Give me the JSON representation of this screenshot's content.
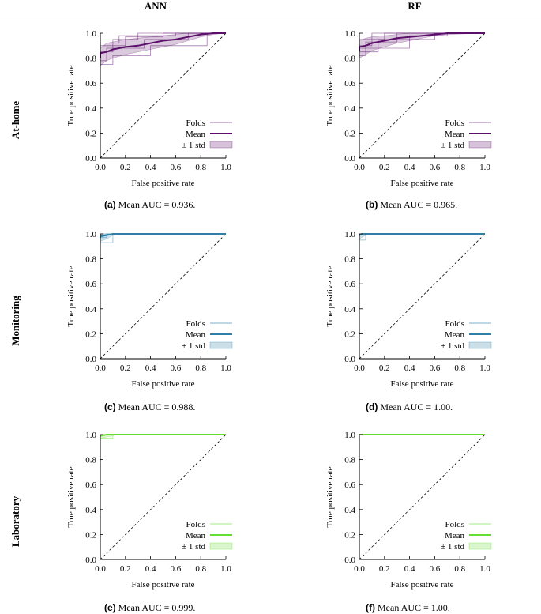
{
  "headers": {
    "ann": "ANN",
    "rf": "RF"
  },
  "rows": {
    "athome": "At-home",
    "monitoring": "Monitoring",
    "laboratory": "Laboratory"
  },
  "axis": {
    "xlabel": "False positive rate",
    "ylabel": "True positive rate",
    "ticks": [
      "0.0",
      "0.2",
      "0.4",
      "0.6",
      "0.8",
      "1.0"
    ]
  },
  "legend": {
    "folds": "Folds",
    "mean": "Mean",
    "std": "± 1 std"
  },
  "colors": {
    "purple": "#5b0f6b",
    "teal": "#2e7ea6",
    "green": "#66dd33"
  },
  "chart_data": [
    {
      "id": "a",
      "type": "line",
      "model": "ANN",
      "group": "At-home",
      "color": "purple",
      "caption_label": "(a)",
      "caption_text": "Mean AUC = 0.936.",
      "xlim": [
        0,
        1
      ],
      "ylim": [
        0,
        1
      ],
      "mean": [
        [
          0,
          0.8
        ],
        [
          0,
          0.84
        ],
        [
          0.05,
          0.85
        ],
        [
          0.1,
          0.87
        ],
        [
          0.15,
          0.88
        ],
        [
          0.2,
          0.89
        ],
        [
          0.3,
          0.9
        ],
        [
          0.4,
          0.92
        ],
        [
          0.5,
          0.94
        ],
        [
          0.6,
          0.95
        ],
        [
          0.7,
          0.97
        ],
        [
          0.8,
          0.99
        ],
        [
          0.9,
          1.0
        ],
        [
          1,
          1.0
        ]
      ],
      "std_upper": [
        [
          0,
          0.88
        ],
        [
          0.05,
          0.92
        ],
        [
          0.1,
          0.93
        ],
        [
          0.2,
          0.95
        ],
        [
          0.3,
          0.96
        ],
        [
          0.4,
          0.97
        ],
        [
          0.5,
          0.98
        ],
        [
          0.6,
          0.99
        ],
        [
          0.7,
          1.0
        ],
        [
          1,
          1.0
        ]
      ],
      "std_lower": [
        [
          0,
          0.74
        ],
        [
          0.05,
          0.78
        ],
        [
          0.1,
          0.8
        ],
        [
          0.2,
          0.83
        ],
        [
          0.3,
          0.85
        ],
        [
          0.4,
          0.87
        ],
        [
          0.5,
          0.89
        ],
        [
          0.6,
          0.91
        ],
        [
          0.7,
          0.94
        ],
        [
          0.8,
          0.97
        ],
        [
          0.9,
          0.99
        ],
        [
          1,
          1.0
        ]
      ],
      "folds": [
        [
          [
            0,
            0.85
          ],
          [
            0.1,
            0.85
          ],
          [
            0.1,
            0.95
          ],
          [
            0.3,
            0.95
          ],
          [
            0.3,
            1.0
          ],
          [
            1,
            1.0
          ]
        ],
        [
          [
            0,
            0.78
          ],
          [
            0.05,
            0.78
          ],
          [
            0.05,
            0.88
          ],
          [
            0.35,
            0.88
          ],
          [
            0.35,
            0.95
          ],
          [
            0.7,
            0.95
          ],
          [
            0.7,
            1.0
          ],
          [
            1,
            1.0
          ]
        ],
        [
          [
            0,
            0.9
          ],
          [
            0.2,
            0.9
          ],
          [
            0.2,
            0.97
          ],
          [
            0.5,
            0.97
          ],
          [
            0.5,
            1.0
          ],
          [
            1,
            1.0
          ]
        ],
        [
          [
            0,
            0.75
          ],
          [
            0.1,
            0.75
          ],
          [
            0.1,
            0.82
          ],
          [
            0.4,
            0.82
          ],
          [
            0.4,
            0.9
          ],
          [
            0.85,
            0.9
          ],
          [
            0.85,
            1.0
          ],
          [
            1,
            1.0
          ]
        ],
        [
          [
            0,
            0.92
          ],
          [
            0.15,
            0.92
          ],
          [
            0.15,
            0.98
          ],
          [
            0.6,
            0.98
          ],
          [
            0.6,
            1.0
          ],
          [
            1,
            1.0
          ]
        ]
      ]
    },
    {
      "id": "b",
      "type": "line",
      "model": "RF",
      "group": "At-home",
      "color": "purple",
      "caption_label": "(b)",
      "caption_text": "Mean AUC = 0.965.",
      "xlim": [
        0,
        1
      ],
      "ylim": [
        0,
        1
      ],
      "mean": [
        [
          0,
          0.86
        ],
        [
          0,
          0.89
        ],
        [
          0.05,
          0.9
        ],
        [
          0.1,
          0.92
        ],
        [
          0.2,
          0.94
        ],
        [
          0.3,
          0.96
        ],
        [
          0.4,
          0.97
        ],
        [
          0.5,
          0.98
        ],
        [
          0.6,
          0.99
        ],
        [
          0.7,
          1.0
        ],
        [
          1,
          1.0
        ]
      ],
      "std_upper": [
        [
          0,
          0.94
        ],
        [
          0.05,
          0.96
        ],
        [
          0.1,
          0.97
        ],
        [
          0.2,
          0.98
        ],
        [
          0.3,
          0.99
        ],
        [
          0.4,
          1.0
        ],
        [
          1,
          1.0
        ]
      ],
      "std_lower": [
        [
          0,
          0.8
        ],
        [
          0.05,
          0.83
        ],
        [
          0.1,
          0.86
        ],
        [
          0.2,
          0.89
        ],
        [
          0.3,
          0.92
        ],
        [
          0.4,
          0.94
        ],
        [
          0.5,
          0.96
        ],
        [
          0.6,
          0.98
        ],
        [
          0.7,
          0.99
        ],
        [
          1,
          1.0
        ]
      ],
      "folds": [
        [
          [
            0,
            0.9
          ],
          [
            0.1,
            0.9
          ],
          [
            0.1,
            1.0
          ],
          [
            1,
            1.0
          ]
        ],
        [
          [
            0,
            0.82
          ],
          [
            0.05,
            0.82
          ],
          [
            0.05,
            0.93
          ],
          [
            0.3,
            0.93
          ],
          [
            0.3,
            1.0
          ],
          [
            1,
            1.0
          ]
        ],
        [
          [
            0,
            0.95
          ],
          [
            0.2,
            0.95
          ],
          [
            0.2,
            1.0
          ],
          [
            1,
            1.0
          ]
        ],
        [
          [
            0,
            0.85
          ],
          [
            0.15,
            0.85
          ],
          [
            0.15,
            0.95
          ],
          [
            0.6,
            0.95
          ],
          [
            0.6,
            1.0
          ],
          [
            1,
            1.0
          ]
        ],
        [
          [
            0,
            0.88
          ],
          [
            0.4,
            0.88
          ],
          [
            0.4,
            0.98
          ],
          [
            0.7,
            0.98
          ],
          [
            0.7,
            1.0
          ],
          [
            1,
            1.0
          ]
        ]
      ]
    },
    {
      "id": "c",
      "type": "line",
      "model": "ANN",
      "group": "Monitoring",
      "color": "teal",
      "caption_label": "(c)",
      "caption_text": "Mean AUC = 0.988.",
      "xlim": [
        0,
        1
      ],
      "ylim": [
        0,
        1
      ],
      "mean": [
        [
          0,
          0.97
        ],
        [
          0,
          0.98
        ],
        [
          0.05,
          0.99
        ],
        [
          0.1,
          1.0
        ],
        [
          1,
          1.0
        ]
      ],
      "std_upper": [
        [
          0,
          1.0
        ],
        [
          1,
          1.0
        ]
      ],
      "std_lower": [
        [
          0,
          0.94
        ],
        [
          0.05,
          0.96
        ],
        [
          0.1,
          0.99
        ],
        [
          0.15,
          1.0
        ],
        [
          1,
          1.0
        ]
      ],
      "folds": [
        [
          [
            0,
            0.93
          ],
          [
            0.1,
            0.93
          ],
          [
            0.1,
            1.0
          ],
          [
            1,
            1.0
          ]
        ],
        [
          [
            0,
            0.97
          ],
          [
            0.05,
            0.97
          ],
          [
            0.05,
            1.0
          ],
          [
            1,
            1.0
          ]
        ],
        [
          [
            0,
            1.0
          ],
          [
            1,
            1.0
          ]
        ]
      ]
    },
    {
      "id": "d",
      "type": "line",
      "model": "RF",
      "group": "Monitoring",
      "color": "teal",
      "caption_label": "(d)",
      "caption_text": "Mean AUC = 1.00.",
      "xlim": [
        0,
        1
      ],
      "ylim": [
        0,
        1
      ],
      "mean": [
        [
          0,
          0.99
        ],
        [
          0.02,
          1.0
        ],
        [
          1,
          1.0
        ]
      ],
      "std_upper": [
        [
          0,
          1.0
        ],
        [
          1,
          1.0
        ]
      ],
      "std_lower": [
        [
          0,
          0.96
        ],
        [
          0.05,
          0.99
        ],
        [
          0.06,
          1.0
        ],
        [
          1,
          1.0
        ]
      ],
      "folds": [
        [
          [
            0,
            0.95
          ],
          [
            0.05,
            0.95
          ],
          [
            0.05,
            1.0
          ],
          [
            1,
            1.0
          ]
        ],
        [
          [
            0,
            1.0
          ],
          [
            1,
            1.0
          ]
        ]
      ]
    },
    {
      "id": "e",
      "type": "line",
      "model": "ANN",
      "group": "Laboratory",
      "color": "green",
      "caption_label": "(e)",
      "caption_text": "Mean AUC = 0.999.",
      "xlim": [
        0,
        1
      ],
      "ylim": [
        0,
        1
      ],
      "mean": [
        [
          0,
          0.99
        ],
        [
          0.05,
          1.0
        ],
        [
          1,
          1.0
        ]
      ],
      "std_upper": [
        [
          0,
          1.0
        ],
        [
          1,
          1.0
        ]
      ],
      "std_lower": [
        [
          0,
          0.97
        ],
        [
          0.1,
          0.99
        ],
        [
          0.11,
          1.0
        ],
        [
          1,
          1.0
        ]
      ],
      "folds": [
        [
          [
            0,
            0.97
          ],
          [
            0.1,
            0.97
          ],
          [
            0.1,
            1.0
          ],
          [
            1,
            1.0
          ]
        ],
        [
          [
            0,
            1.0
          ],
          [
            1,
            1.0
          ]
        ]
      ]
    },
    {
      "id": "f",
      "type": "line",
      "model": "RF",
      "group": "Laboratory",
      "color": "green",
      "caption_label": "(f)",
      "caption_text": "Mean AUC = 1.00.",
      "xlim": [
        0,
        1
      ],
      "ylim": [
        0,
        1
      ],
      "mean": [
        [
          0,
          1.0
        ],
        [
          1,
          1.0
        ]
      ],
      "std_upper": [
        [
          0,
          1.0
        ],
        [
          1,
          1.0
        ]
      ],
      "std_lower": [
        [
          0,
          1.0
        ],
        [
          1,
          1.0
        ]
      ],
      "folds": [
        [
          [
            0,
            1.0
          ],
          [
            1,
            1.0
          ]
        ]
      ]
    }
  ]
}
